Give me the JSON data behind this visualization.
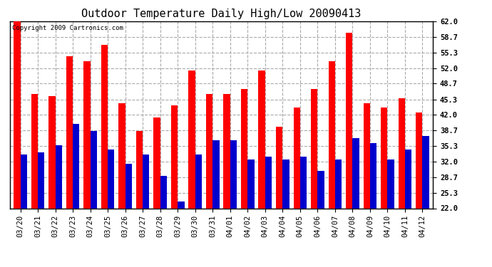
{
  "title": "Outdoor Temperature Daily High/Low 20090413",
  "copyright_text": "Copyright 2009 Cartronics.com",
  "dates": [
    "03/20",
    "03/21",
    "03/22",
    "03/23",
    "03/24",
    "03/25",
    "03/26",
    "03/27",
    "03/28",
    "03/29",
    "03/30",
    "03/31",
    "04/01",
    "04/02",
    "04/03",
    "04/04",
    "04/05",
    "04/06",
    "04/07",
    "04/08",
    "04/09",
    "04/10",
    "04/11",
    "04/12"
  ],
  "highs": [
    62.0,
    46.5,
    46.0,
    54.5,
    53.5,
    57.0,
    44.5,
    38.5,
    41.5,
    44.0,
    51.5,
    46.5,
    46.5,
    47.5,
    51.5,
    39.5,
    43.5,
    47.5,
    53.5,
    59.5,
    44.5,
    43.5,
    45.5,
    42.5
  ],
  "lows": [
    33.5,
    34.0,
    35.5,
    40.0,
    38.5,
    34.5,
    31.5,
    33.5,
    29.0,
    23.5,
    33.5,
    36.5,
    36.5,
    32.5,
    33.0,
    32.5,
    33.0,
    30.0,
    32.5,
    37.0,
    36.0,
    32.5,
    34.5,
    37.5
  ],
  "high_color": "#ff0000",
  "low_color": "#0000cc",
  "bg_color": "#ffffff",
  "plot_bg_color": "#ffffff",
  "grid_color": "#aaaaaa",
  "yticks": [
    62.0,
    58.7,
    55.3,
    52.0,
    48.7,
    45.3,
    42.0,
    38.7,
    35.3,
    32.0,
    28.7,
    25.3,
    22.0
  ],
  "ymin": 22.0,
  "ymax": 62.0,
  "title_fontsize": 11,
  "tick_fontsize": 7.5,
  "bar_width": 0.38
}
